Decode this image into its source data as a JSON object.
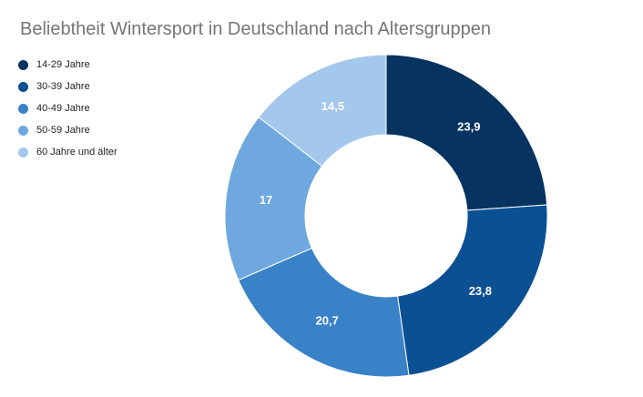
{
  "chart_data": {
    "type": "pie",
    "title": "Beliebtheit Wintersport in Deutschland nach Altersgruppen",
    "legend_position": "left",
    "categories": [
      "14-29 Jahre",
      "30-39 Jahre",
      "40-49 Jahre",
      "50-59 Jahre",
      "60 Jahre und älter"
    ],
    "values": [
      23.9,
      23.8,
      20.7,
      17,
      14.5
    ],
    "value_labels": [
      "23,9",
      "23,8",
      "20,7",
      "17",
      "14,5"
    ],
    "colors": [
      "#06335f",
      "#0c5094",
      "#3a82c8",
      "#6ea8df",
      "#a4c8ec"
    ],
    "donut": true
  }
}
